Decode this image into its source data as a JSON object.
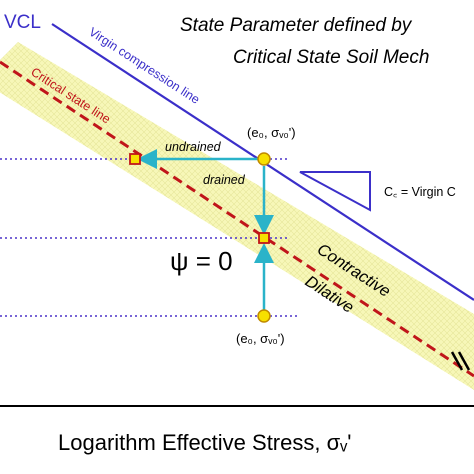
{
  "title": {
    "line1": "State Parameter defined by",
    "line2": "Critical State Soil Mech"
  },
  "labels": {
    "vcl": "VCL",
    "virgin_compression_line": "Virgin compression line",
    "critical_state_line": "Critical state line",
    "undrained": "undrained",
    "drained": "drained",
    "psi_equals_zero": "ψ = 0",
    "contractive": "Contractive",
    "dilative": "Dilative",
    "initial_state_top": "(e₀, σᵥ₀')",
    "initial_state_bottom": "(e₀, σᵥ₀')",
    "slope_label": "C꜀ = Virgin C",
    "x_axis": "Logarithm Effective Stress, σᵥ'"
  },
  "colors": {
    "vcl_line": "#3b2fc9",
    "csl_line": "#c0151a",
    "band_fill": "#f5f5b0",
    "arrow": "#2ab3c9",
    "point_fill": "#f7e000",
    "dotted_lines": "#4b32c8",
    "marker_square": "#e0c000",
    "marker_border": "#c0151a"
  }
}
